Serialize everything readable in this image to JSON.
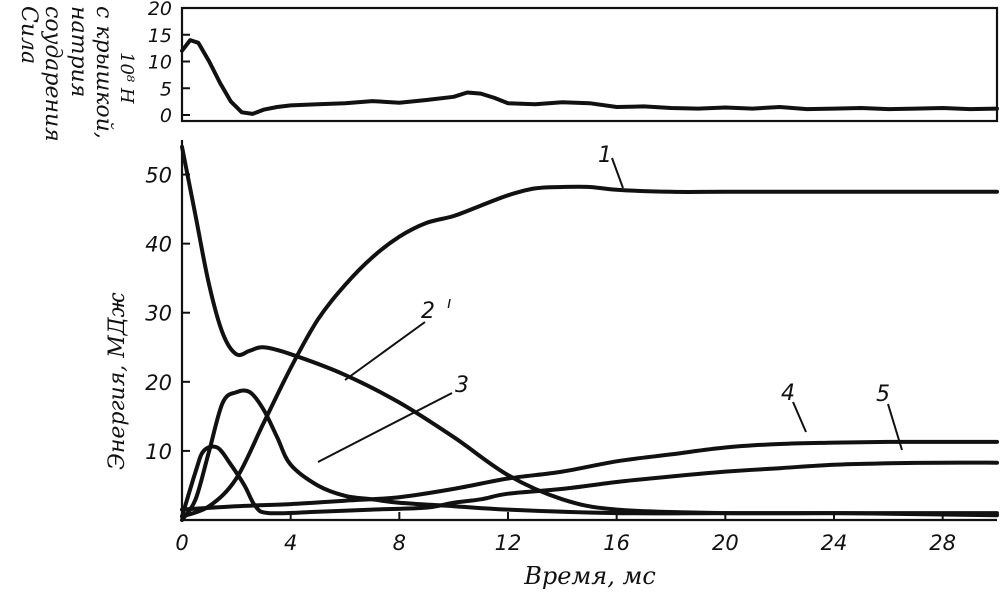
{
  "chart_data": [
    {
      "type": "line",
      "ylabel": [
        "Сила",
        "соударения",
        "натрия",
        "с крышкой,",
        "10⁸ Н"
      ],
      "ylim": [
        0,
        20
      ],
      "xlim": [
        0,
        30
      ],
      "yticks": [
        "0",
        "5",
        "10",
        "15",
        "20"
      ],
      "series": [
        {
          "x": [
            0,
            0.3,
            0.6,
            1.0,
            1.4,
            1.8,
            2.2,
            2.6,
            3.0,
            3.5,
            4,
            5,
            6,
            7,
            8,
            9,
            10,
            10.5,
            11,
            11.5,
            12,
            13,
            14,
            15,
            16,
            17,
            18,
            19,
            20,
            21,
            22,
            23,
            24,
            25,
            26,
            27,
            28,
            29,
            30
          ],
          "y": [
            12,
            14,
            13.5,
            10,
            6,
            2.5,
            0.5,
            0.2,
            1.0,
            1.5,
            1.8,
            2.0,
            2.2,
            2.6,
            2.3,
            2.8,
            3.4,
            4.2,
            4.0,
            3.2,
            2.2,
            2.0,
            2.4,
            2.2,
            1.5,
            1.6,
            1.3,
            1.2,
            1.4,
            1.2,
            1.5,
            1.1,
            1.2,
            1.3,
            1.1,
            1.2,
            1.3,
            1.1,
            1.2
          ]
        }
      ]
    },
    {
      "type": "line",
      "ylabel": "Энергия, МДж",
      "xlabel": "Время, мс",
      "xlim": [
        0,
        30
      ],
      "ylim": [
        0,
        55
      ],
      "xticks": [
        "0",
        "4",
        "8",
        "12",
        "16",
        "20",
        "24",
        "28"
      ],
      "yticks": [
        "10",
        "20",
        "30",
        "40",
        "50"
      ],
      "annotations": [
        "1",
        "2",
        "3",
        "4",
        "5"
      ],
      "series": [
        {
          "name": "1",
          "x": [
            0,
            1,
            2,
            3,
            4,
            5,
            6,
            7,
            8,
            9,
            10,
            11,
            12,
            13,
            14,
            15,
            16,
            18,
            20,
            24,
            28,
            30
          ],
          "y": [
            0.5,
            2,
            6,
            14,
            22,
            29,
            34,
            38,
            41,
            43,
            44,
            45.5,
            47,
            48,
            48.2,
            48.2,
            47.8,
            47.5,
            47.5,
            47.5,
            47.5,
            47.5
          ]
        },
        {
          "name": "2",
          "x": [
            0,
            0.5,
            1,
            1.5,
            2,
            2.5,
            3,
            4,
            6,
            8,
            10,
            12,
            14,
            16,
            20,
            24,
            28,
            30
          ],
          "y": [
            54,
            44,
            34,
            27,
            24,
            24.5,
            25,
            24,
            21,
            17,
            12,
            6.5,
            3,
            1.5,
            1,
            1,
            0.8,
            0.7
          ]
        },
        {
          "name": "3",
          "x": [
            0,
            0.5,
            1,
            1.5,
            2,
            2.5,
            3,
            3.5,
            4,
            5,
            6,
            7,
            8,
            10,
            12,
            16,
            20,
            24,
            28,
            30
          ],
          "y": [
            0,
            3,
            10,
            17,
            18.5,
            18.5,
            16,
            12,
            8,
            5,
            3.5,
            3,
            2.5,
            2,
            1.5,
            1,
            1,
            1,
            1,
            1
          ]
        },
        {
          "name": "4",
          "x": [
            0,
            2,
            4,
            6,
            8,
            10,
            12,
            14,
            16,
            18,
            20,
            22,
            24,
            26,
            28,
            30
          ],
          "y": [
            1.5,
            2,
            2.3,
            2.8,
            3.3,
            4.5,
            6,
            7,
            8.5,
            9.5,
            10.5,
            11,
            11.2,
            11.3,
            11.3,
            11.3
          ]
        },
        {
          "name": "5",
          "x": [
            0,
            0.5,
            0.8,
            1.3,
            1.8,
            2.3,
            2.7,
            3.2,
            5,
            7,
            9,
            10,
            11,
            12,
            14,
            16,
            18,
            20,
            22,
            24,
            26,
            28,
            30
          ],
          "y": [
            0.5,
            7,
            10,
            10.5,
            8,
            5,
            2,
            1,
            1.2,
            1.5,
            1.8,
            2.5,
            3,
            3.8,
            4.5,
            5.5,
            6.3,
            7,
            7.5,
            8,
            8.2,
            8.3,
            8.3
          ]
        }
      ]
    }
  ]
}
